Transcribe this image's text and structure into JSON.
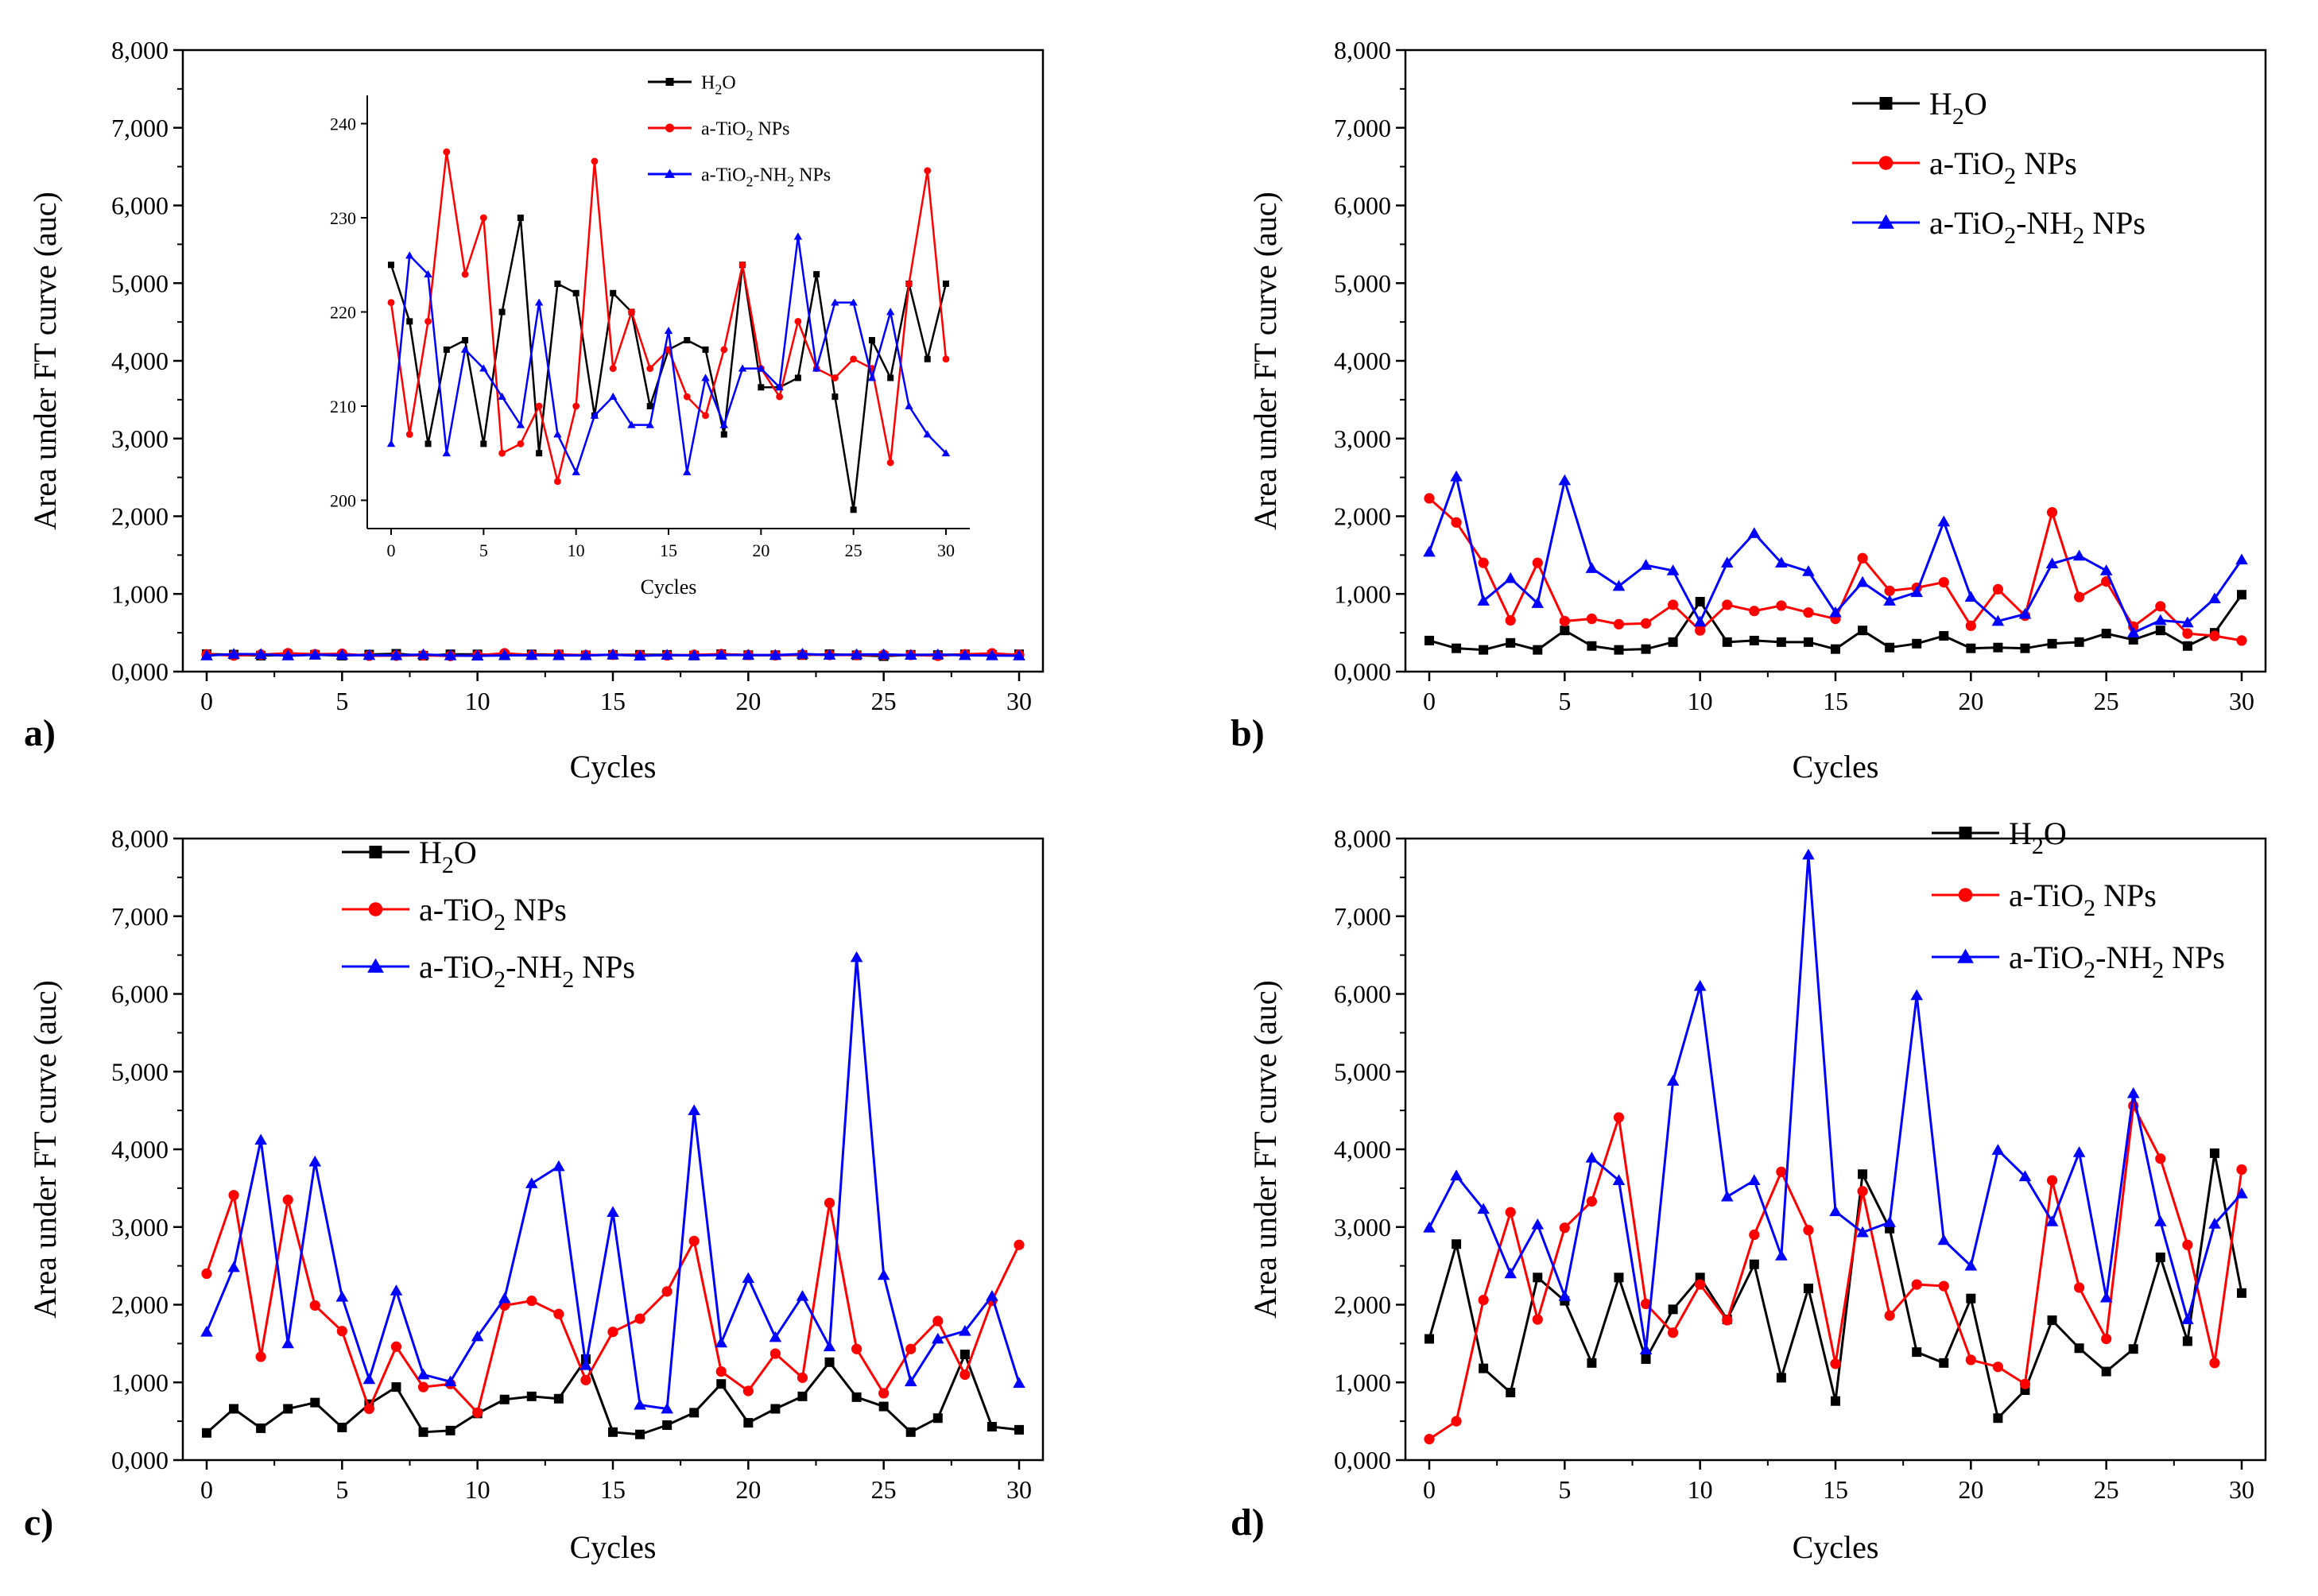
{
  "chart_data": [
    {
      "panel": "a)",
      "type": "line",
      "xlabel": "Cycles",
      "ylabel": "Area under FT curve (auc)",
      "xlim": [
        0,
        30
      ],
      "ylim": [
        0,
        8000
      ],
      "x_ticks": [
        "0",
        "5",
        "10",
        "15",
        "20",
        "25",
        "30"
      ],
      "y_ticks": [
        "0,000",
        "1,000",
        "2,000",
        "3,000",
        "4,000",
        "5,000",
        "6,000",
        "7,000",
        "8,000"
      ],
      "x": [
        0,
        1,
        2,
        3,
        4,
        5,
        6,
        7,
        8,
        9,
        10,
        11,
        12,
        13,
        14,
        15,
        16,
        17,
        18,
        19,
        20,
        21,
        22,
        23,
        24,
        25,
        26,
        27,
        28,
        29,
        30
      ],
      "series": [
        {
          "name": "H2O",
          "label": "H",
          "sub": "2",
          "tail": "O",
          "color": "#000000",
          "marker": "square",
          "values": [
            225,
            219,
            206,
            216,
            217,
            206,
            220,
            230,
            205,
            223,
            222,
            209,
            222,
            220,
            210,
            216,
            217,
            216,
            207,
            225,
            212,
            212,
            213,
            224,
            211,
            199,
            217,
            213,
            223,
            215,
            223
          ]
        },
        {
          "name": "a-TiO2 NPs",
          "label": "a-TiO",
          "sub": "2",
          "tail": " NPs",
          "color": "#ff0000",
          "marker": "circle",
          "values": [
            221,
            207,
            219,
            237,
            224,
            230,
            205,
            206,
            210,
            202,
            210,
            236,
            214,
            220,
            214,
            216,
            211,
            209,
            216,
            225,
            214,
            211,
            219,
            214,
            213,
            215,
            214,
            204,
            223,
            235,
            215
          ]
        },
        {
          "name": "a-TiO2-NH2 NPs",
          "label": "a-TiO",
          "sub": "2",
          "tail": "-NH",
          "sub2": "2",
          "tail2": " NPs",
          "color": "#0000ff",
          "marker": "triangle",
          "values": [
            206,
            226,
            224,
            205,
            216,
            214,
            211,
            208,
            221,
            207,
            203,
            209,
            211,
            208,
            208,
            218,
            203,
            213,
            208,
            214,
            214,
            212,
            228,
            214,
            221,
            221,
            213,
            220,
            210,
            207,
            205
          ]
        }
      ],
      "inset": {
        "xlabel": "Cycles",
        "xlim": [
          0,
          30
        ],
        "ylim": [
          197,
          243
        ],
        "x_ticks": [
          "0",
          "5",
          "10",
          "15",
          "20",
          "25",
          "30"
        ],
        "y_ticks": [
          "200",
          "210",
          "220",
          "230",
          "240"
        ]
      }
    },
    {
      "panel": "b)",
      "type": "line",
      "xlabel": "Cycles",
      "ylabel": "Area under FT curve (auc)",
      "xlim": [
        0,
        30
      ],
      "ylim": [
        0,
        8000
      ],
      "x_ticks": [
        "0",
        "5",
        "10",
        "15",
        "20",
        "25",
        "30"
      ],
      "y_ticks": [
        "0,000",
        "1,000",
        "2,000",
        "3,000",
        "4,000",
        "5,000",
        "6,000",
        "7,000",
        "8,000"
      ],
      "x": [
        0,
        1,
        2,
        3,
        4,
        5,
        6,
        7,
        8,
        9,
        10,
        11,
        12,
        13,
        14,
        15,
        16,
        17,
        18,
        19,
        20,
        21,
        22,
        23,
        24,
        25,
        26,
        27,
        28,
        29,
        30
      ],
      "series": [
        {
          "name": "H2O",
          "label": "H",
          "sub": "2",
          "tail": "O",
          "color": "#000000",
          "marker": "square",
          "values": [
            400,
            300,
            280,
            370,
            280,
            530,
            330,
            280,
            290,
            380,
            900,
            380,
            400,
            380,
            380,
            290,
            530,
            310,
            360,
            460,
            300,
            310,
            300,
            360,
            380,
            490,
            410,
            530,
            330,
            500,
            990
          ]
        },
        {
          "name": "a-TiO2 NPs",
          "label": "a-TiO",
          "sub": "2",
          "tail": " NPs",
          "color": "#ff0000",
          "marker": "circle",
          "values": [
            2230,
            1920,
            1400,
            660,
            1400,
            650,
            680,
            610,
            620,
            860,
            530,
            860,
            780,
            850,
            760,
            680,
            1460,
            1040,
            1080,
            1150,
            590,
            1060,
            720,
            2050,
            960,
            1160,
            580,
            840,
            490,
            460,
            400
          ]
        },
        {
          "name": "a-TiO2-NH2 NPs",
          "label": "a-TiO",
          "sub": "2",
          "tail": "-NH",
          "sub2": "2",
          "tail2": " NPs",
          "color": "#0000ff",
          "marker": "triangle",
          "values": [
            1540,
            2510,
            910,
            1200,
            880,
            2460,
            1330,
            1100,
            1370,
            1300,
            640,
            1400,
            1780,
            1400,
            1290,
            760,
            1150,
            910,
            1020,
            1930,
            960,
            650,
            740,
            1390,
            1490,
            1300,
            500,
            660,
            630,
            940,
            1440
          ]
        }
      ]
    },
    {
      "panel": "c)",
      "type": "line",
      "xlabel": "Cycles",
      "ylabel": "Area under FT curve (auc)",
      "xlim": [
        0,
        30
      ],
      "ylim": [
        0,
        8000
      ],
      "x_ticks": [
        "0",
        "5",
        "10",
        "15",
        "20",
        "25",
        "30"
      ],
      "y_ticks": [
        "0,000",
        "1,000",
        "2,000",
        "3,000",
        "4,000",
        "5,000",
        "6,000",
        "7,000",
        "8,000"
      ],
      "x": [
        0,
        1,
        2,
        3,
        4,
        5,
        6,
        7,
        8,
        9,
        10,
        11,
        12,
        13,
        14,
        15,
        16,
        17,
        18,
        19,
        20,
        21,
        22,
        23,
        24,
        25,
        26,
        27,
        28,
        29,
        30
      ],
      "series": [
        {
          "name": "H2O",
          "label": "H",
          "sub": "2",
          "tail": "O",
          "color": "#000000",
          "marker": "square",
          "values": [
            350,
            660,
            410,
            660,
            740,
            420,
            720,
            940,
            360,
            380,
            600,
            780,
            820,
            790,
            1300,
            360,
            330,
            450,
            610,
            980,
            480,
            660,
            820,
            1260,
            810,
            690,
            360,
            540,
            1360,
            430,
            390
          ]
        },
        {
          "name": "a-TiO2 NPs",
          "label": "a-TiO",
          "sub": "2",
          "tail": " NPs",
          "color": "#ff0000",
          "marker": "circle",
          "values": [
            2400,
            3410,
            1330,
            3350,
            1990,
            1660,
            660,
            1460,
            940,
            980,
            610,
            1990,
            2050,
            1880,
            1030,
            1650,
            1820,
            2170,
            2820,
            1140,
            890,
            1370,
            1060,
            3310,
            1430,
            860,
            1430,
            1790,
            1100,
            2050,
            2770
          ]
        },
        {
          "name": "a-TiO2-NH2 NPs",
          "label": "a-TiO",
          "sub": "2",
          "tail": "-NH",
          "sub2": "2",
          "tail2": " NPs",
          "color": "#0000ff",
          "marker": "triangle",
          "values": [
            1650,
            2480,
            4120,
            1500,
            3840,
            2100,
            1040,
            2180,
            1100,
            1010,
            1590,
            2080,
            3560,
            3780,
            1220,
            3190,
            710,
            660,
            4500,
            1510,
            2340,
            1580,
            2110,
            1460,
            6470,
            2380,
            1010,
            1560,
            1660,
            2110,
            990
          ]
        }
      ]
    },
    {
      "panel": "d)",
      "type": "line",
      "xlabel": "Cycles",
      "ylabel": "Area under FT curve (auc)",
      "xlim": [
        0,
        30
      ],
      "ylim": [
        0,
        8000
      ],
      "x_ticks": [
        "0",
        "5",
        "10",
        "15",
        "20",
        "25",
        "30"
      ],
      "y_ticks": [
        "0,000",
        "1,000",
        "2,000",
        "3,000",
        "4,000",
        "5,000",
        "6,000",
        "7,000",
        "8,000"
      ],
      "x": [
        0,
        1,
        2,
        3,
        4,
        5,
        6,
        7,
        8,
        9,
        10,
        11,
        12,
        13,
        14,
        15,
        16,
        17,
        18,
        19,
        20,
        21,
        22,
        23,
        24,
        25,
        26,
        27,
        28,
        29,
        30
      ],
      "series": [
        {
          "name": "H2O",
          "label": "H",
          "sub": "2",
          "tail": "O",
          "color": "#000000",
          "marker": "square",
          "values": [
            1560,
            2780,
            1180,
            870,
            2350,
            2050,
            1250,
            2350,
            1300,
            1940,
            2350,
            1810,
            2520,
            1060,
            2210,
            760,
            3680,
            2980,
            1390,
            1250,
            2080,
            540,
            900,
            1800,
            1440,
            1140,
            1430,
            2610,
            1530,
            3950,
            2150
          ]
        },
        {
          "name": "a-TiO2 NPs",
          "label": "a-TiO",
          "sub": "2",
          "tail": " NPs",
          "color": "#ff0000",
          "marker": "circle",
          "values": [
            270,
            500,
            2060,
            3190,
            1810,
            2990,
            3330,
            4410,
            2010,
            1640,
            2260,
            1800,
            2900,
            3710,
            2960,
            1240,
            3460,
            1860,
            2260,
            2240,
            1290,
            1200,
            980,
            3600,
            2220,
            1560,
            4560,
            3880,
            2770,
            1250,
            3740
          ]
        },
        {
          "name": "a-TiO2-NH2 NPs",
          "label": "a-TiO",
          "sub": "2",
          "tail": "-NH",
          "sub2": "2",
          "tail2": " NPs",
          "color": "#0000ff",
          "marker": "triangle",
          "values": [
            2990,
            3660,
            3230,
            2400,
            3030,
            2110,
            3890,
            3600,
            1420,
            4880,
            6100,
            3390,
            3600,
            2630,
            7790,
            3200,
            2930,
            3060,
            5980,
            2830,
            2500,
            3990,
            3650,
            3070,
            3960,
            2090,
            4720,
            3070,
            1810,
            3040,
            3430
          ]
        }
      ]
    }
  ]
}
